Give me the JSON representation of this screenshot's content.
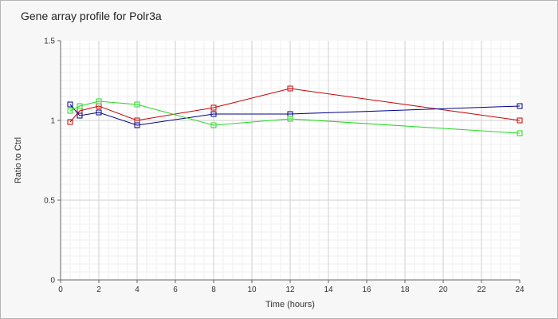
{
  "chart_data": {
    "type": "line",
    "title": "Gene array profile for Polr3a",
    "xlabel": "Time (hours)",
    "ylabel": "Ratio to Ctrl",
    "xlim": [
      0,
      24
    ],
    "ylim": [
      0,
      1.5
    ],
    "x_ticks": [
      "0",
      "2",
      "4",
      "6",
      "8",
      "10",
      "12",
      "14",
      "16",
      "18",
      "20",
      "22",
      "24"
    ],
    "y_ticks": [
      "0",
      "0.5",
      "1",
      "1.5"
    ],
    "grid": true,
    "legend": "none",
    "series": [
      {
        "color": "#cc0000",
        "points": [
          [
            0.5,
            0.99
          ],
          [
            1,
            1.06
          ],
          [
            2,
            1.09
          ],
          [
            4,
            1.0
          ],
          [
            8,
            1.08
          ],
          [
            12,
            1.2
          ],
          [
            24,
            1.0
          ]
        ]
      },
      {
        "color": "#00008b",
        "points": [
          [
            0.5,
            1.1
          ],
          [
            1,
            1.03
          ],
          [
            2,
            1.05
          ],
          [
            4,
            0.97
          ],
          [
            8,
            1.04
          ],
          [
            12,
            1.04
          ],
          [
            24,
            1.09
          ]
        ]
      },
      {
        "color": "#22dd22",
        "points": [
          [
            0.5,
            1.06
          ],
          [
            1,
            1.09
          ],
          [
            2,
            1.12
          ],
          [
            4,
            1.1
          ],
          [
            8,
            0.97
          ],
          [
            12,
            1.01
          ],
          [
            24,
            0.92
          ]
        ]
      }
    ]
  }
}
